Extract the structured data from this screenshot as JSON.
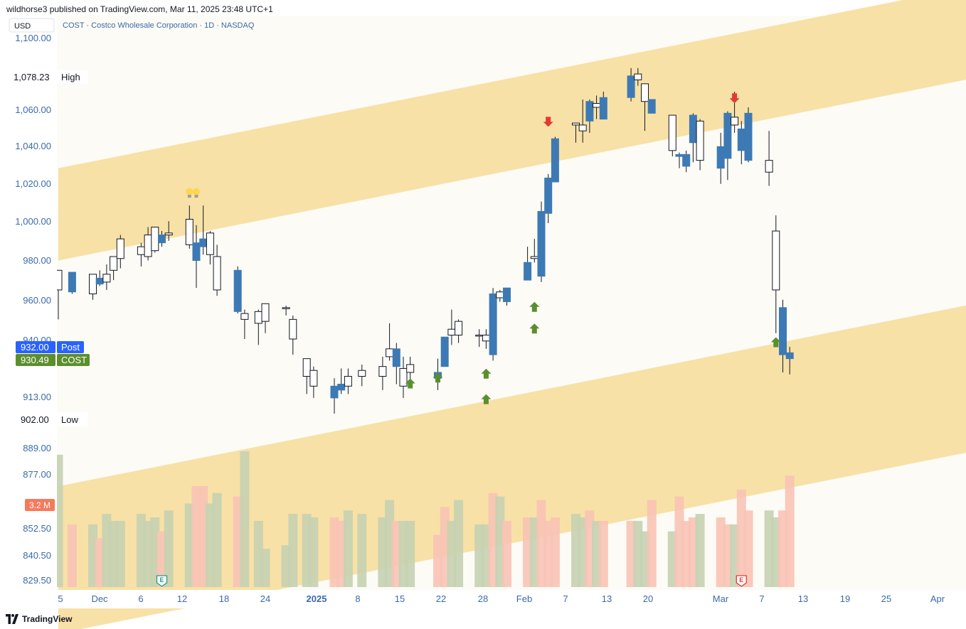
{
  "header": {
    "published": "wildhorse3 published on TradingView.com, Mar 11, 2025 23:48 UTC+1"
  },
  "footer": {
    "brand": "TradingView",
    "logo_icon": "tradingview-logo-icon"
  },
  "colors": {
    "up": "#ffffff",
    "down": "#3d7ab5",
    "channel": "#f8e1a6",
    "background": "#fcfbf6",
    "vol_up": "#c5d1b3",
    "vol_down": "#f8c3b6",
    "accent": "#3b6aa8"
  },
  "chart_data": {
    "type": "candlestick",
    "symbol_line": "COST · Costco Wholesale Corporation · 1D · NASDAQ",
    "currency": "USD",
    "y_ticks": [
      "1,100.00",
      "1,060.00",
      "1,040.00",
      "1,020.00",
      "1,000.00",
      "980.00",
      "960.00",
      "940.00",
      "913.00",
      "889.00",
      "877.00",
      "852.50",
      "840.50",
      "829.50"
    ],
    "x_ticks": [
      "5",
      "Dec",
      "6",
      "12",
      "18",
      "24",
      "2025",
      "8",
      "15",
      "22",
      "28",
      "Feb",
      "7",
      "13",
      "20",
      "Mar",
      "7",
      "13",
      "19",
      "25",
      "Apr"
    ],
    "price_labels": {
      "high": {
        "value": "1,078.23",
        "text": "High"
      },
      "low": {
        "value": "902.00",
        "text": "Low"
      },
      "post": {
        "value": "932.00",
        "text": "Post"
      },
      "last": {
        "value": "930.49",
        "text": "COST"
      },
      "volume": {
        "value": "3.2 M"
      }
    },
    "earnings_marker": "E",
    "candles": [
      [
        "2024-11-27",
        965,
        975,
        950,
        975
      ],
      [
        "2024-11-29",
        974,
        974,
        963,
        964
      ],
      [
        "2024-12-02",
        963,
        972,
        960,
        973
      ],
      [
        "2024-12-03",
        971,
        975,
        967,
        968
      ],
      [
        "2024-12-04",
        969,
        978,
        965,
        973
      ],
      [
        "2024-12-05",
        975,
        982,
        970,
        982
      ],
      [
        "2024-12-06",
        981,
        993,
        976,
        991
      ],
      [
        "2024-12-09",
        983,
        989,
        977,
        987
      ],
      [
        "2024-12-10",
        982,
        997,
        980,
        993
      ],
      [
        "2024-12-11",
        985,
        997,
        984,
        997
      ],
      [
        "2024-12-12",
        993,
        995,
        987,
        989
      ],
      [
        "2024-12-13",
        993,
        1000,
        990,
        994
      ],
      [
        "2024-12-16",
        988,
        1008,
        986,
        1001
      ],
      [
        "2024-12-17",
        989,
        998,
        966,
        980
      ],
      [
        "2024-12-18",
        991,
        1008,
        983,
        987
      ],
      [
        "2024-12-19",
        983,
        995,
        978,
        994
      ],
      [
        "2024-12-20",
        965,
        988,
        962,
        982
      ],
      [
        "2024-12-23",
        975,
        977,
        953,
        954
      ],
      [
        "2024-12-24",
        950,
        955,
        940,
        953
      ],
      [
        "2024-12-26",
        948,
        955,
        937,
        954
      ],
      [
        "2024-12-27",
        949,
        958,
        943,
        958
      ],
      [
        "2024-12-30",
        956,
        957,
        952,
        956
      ],
      [
        "2024-12-31",
        940,
        952,
        932,
        950
      ],
      [
        "2025-01-02",
        921,
        930,
        912,
        930
      ],
      [
        "2025-01-03",
        916,
        926,
        910,
        924
      ],
      [
        "2025-01-06",
        916,
        920,
        902,
        910
      ],
      [
        "2025-01-07",
        917,
        925,
        912,
        914
      ],
      [
        "2025-01-08",
        916,
        925,
        912,
        921
      ],
      [
        "2025-01-10",
        921,
        927,
        916,
        924
      ],
      [
        "2025-01-13",
        921,
        931,
        914,
        926
      ],
      [
        "2025-01-14",
        931,
        948,
        929,
        935
      ],
      [
        "2025-01-15",
        935,
        938,
        917,
        926
      ],
      [
        "2025-01-16",
        916,
        931,
        910,
        925
      ],
      [
        "2025-01-17",
        923,
        931,
        915,
        927
      ],
      [
        "2025-01-21",
        923,
        930,
        914,
        920
      ],
      [
        "2025-01-22",
        941,
        941,
        927,
        926
      ],
      [
        "2025-01-23",
        942,
        955,
        937,
        945
      ],
      [
        "2025-01-24",
        942,
        950,
        938,
        949
      ],
      [
        "2025-01-27",
        942,
        945,
        936,
        942
      ],
      [
        "2025-01-28",
        939,
        945,
        935,
        942
      ],
      [
        "2025-01-29",
        963,
        966,
        929,
        932
      ],
      [
        "2025-01-30",
        961,
        965,
        959,
        964
      ],
      [
        "2025-01-31",
        966,
        966,
        957,
        959
      ],
      [
        "2025-02-03",
        979,
        987,
        970,
        970
      ],
      [
        "2025-02-04",
        981,
        991,
        979,
        982
      ],
      [
        "2025-02-05",
        1005,
        1010,
        969,
        972
      ],
      [
        "2025-02-06",
        1022,
        1024,
        999,
        1004
      ],
      [
        "2025-02-07",
        1042,
        1043,
        1020,
        1020
      ],
      [
        "2025-02-10",
        1049,
        1050,
        1040,
        1050
      ],
      [
        "2025-02-11",
        1046,
        1062,
        1040,
        1049
      ],
      [
        "2025-02-12",
        1061,
        1062,
        1045,
        1051
      ],
      [
        "2025-02-13",
        1058,
        1064,
        1052,
        1060
      ],
      [
        "2025-02-14",
        1063,
        1066,
        1053,
        1052
      ],
      [
        "2025-02-18",
        1074,
        1078,
        1061,
        1063
      ],
      [
        "2025-02-19",
        1072,
        1078,
        1069,
        1075
      ],
      [
        "2025-02-20",
        1061,
        1070,
        1046,
        1070
      ],
      [
        "2025-02-21",
        1062,
        1062,
        1055,
        1055
      ],
      [
        "2025-02-24",
        1036,
        1054,
        1033,
        1054
      ],
      [
        "2025-02-25",
        1034,
        1035,
        1027,
        1033
      ],
      [
        "2025-02-26",
        1034,
        1036,
        1025,
        1028
      ],
      [
        "2025-02-27",
        1054,
        1055,
        1030,
        1040
      ],
      [
        "2025-02-28",
        1031,
        1052,
        1026,
        1051
      ],
      [
        "2025-03-03",
        1038,
        1045,
        1019,
        1027
      ],
      [
        "2025-03-04",
        1055,
        1056,
        1021,
        1032
      ],
      [
        "2025-03-05",
        1049,
        1066,
        1045,
        1053
      ],
      [
        "2025-03-06",
        1047,
        1051,
        1029,
        1036
      ],
      [
        "2025-03-07",
        1055,
        1058,
        1030,
        1031
      ],
      [
        "2025-03-10",
        1025,
        1046,
        1018,
        1031
      ],
      [
        "2025-03-11",
        965,
        1003,
        943,
        995
      ],
      [
        "2025-03-12",
        956,
        960,
        923,
        932
      ],
      [
        "2025-03-13",
        933,
        936,
        922,
        930
      ]
    ],
    "volume_m": [
      3.8,
      1.8,
      1.8,
      1.4,
      2.1,
      1.9,
      1.9,
      2.1,
      1.9,
      2.0,
      1.6,
      2.2,
      2.4,
      2.9,
      2.9,
      2.4,
      2.7,
      2.6,
      3.9,
      1.9,
      1.1,
      1.2,
      2.1,
      2.1,
      2.0,
      2.0,
      1.9,
      2.2,
      2.1,
      2.0,
      2.5,
      1.9,
      1.9,
      1.9,
      1.5,
      2.3,
      1.9,
      2.5,
      1.8,
      1.8,
      2.7,
      2.6,
      1.9,
      2.0,
      2.0,
      2.5,
      1.9,
      2.0,
      2.1,
      2.0,
      2.2,
      1.9,
      1.9,
      1.9,
      1.9,
      1.6,
      2.5,
      1.6,
      2.6,
      1.9,
      2.0,
      2.1,
      2.0,
      1.8,
      1.8,
      2.8,
      2.2,
      2.2,
      2.0,
      2.2,
      3.2
    ],
    "annotations": [
      {
        "type": "signal",
        "direction": "up",
        "date": "2025-01-17",
        "price": 917
      },
      {
        "type": "signal",
        "direction": "up",
        "date": "2025-01-21",
        "price": 920
      },
      {
        "type": "signal",
        "direction": "up",
        "date": "2025-01-28",
        "price": 909
      },
      {
        "type": "signal",
        "direction": "up",
        "date": "2025-01-28",
        "price": 922
      },
      {
        "type": "signal",
        "direction": "up",
        "date": "2025-02-04",
        "price": 945
      },
      {
        "type": "signal",
        "direction": "up",
        "date": "2025-02-04",
        "price": 956
      },
      {
        "type": "signal",
        "direction": "down",
        "date": "2025-02-06",
        "price": 1051
      },
      {
        "type": "signal",
        "direction": "down",
        "date": "2025-03-05",
        "price": 1063
      },
      {
        "type": "signal",
        "direction": "up",
        "date": "2025-03-11",
        "price": 938
      },
      {
        "type": "idea",
        "date": "2024-12-16",
        "price": 1014
      },
      {
        "type": "idea",
        "date": "2024-12-17",
        "price": 1014
      }
    ]
  }
}
